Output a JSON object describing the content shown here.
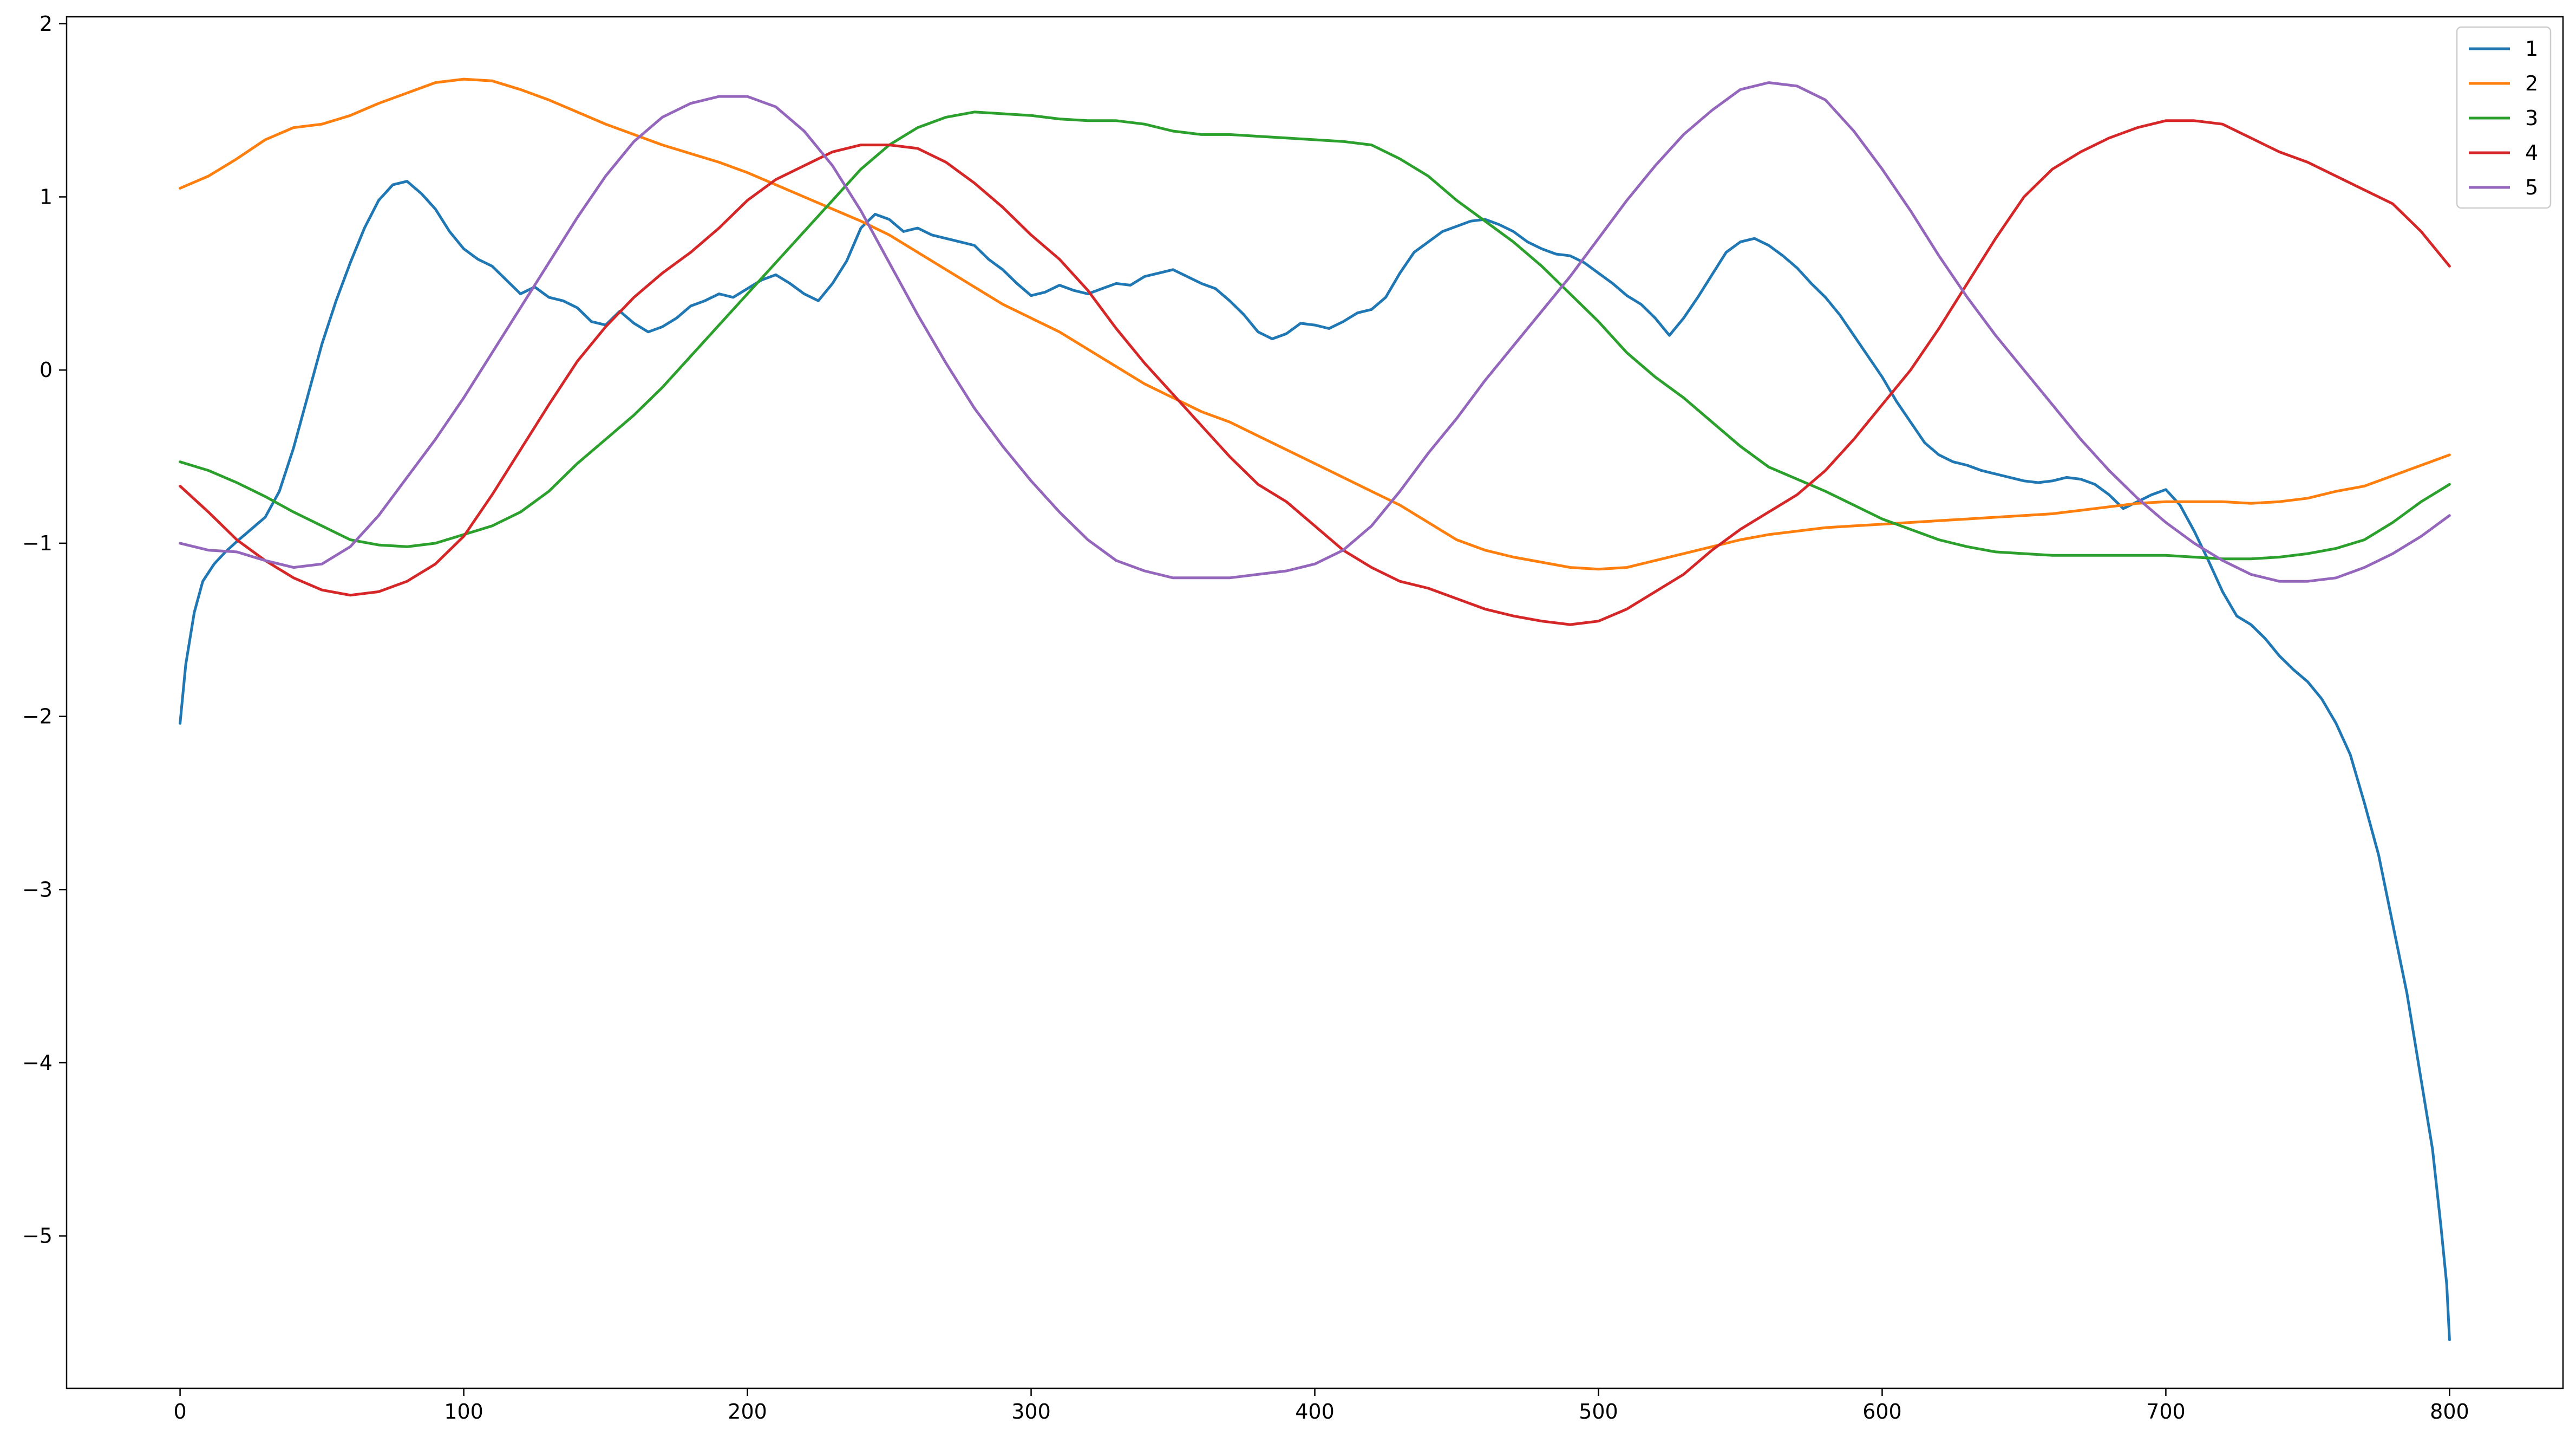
{
  "chart_data": {
    "type": "line",
    "title": "",
    "xlabel": "",
    "ylabel": "",
    "xlim": [
      -40,
      840
    ],
    "ylim": [
      -5.88,
      2.04
    ],
    "x_ticks": [
      0,
      100,
      200,
      300,
      400,
      500,
      600,
      700,
      800
    ],
    "x_tick_labels": [
      "0",
      "100",
      "200",
      "300",
      "400",
      "500",
      "600",
      "700",
      "800"
    ],
    "y_ticks": [
      -5,
      -4,
      -3,
      -2,
      -1,
      0,
      1,
      2
    ],
    "y_tick_labels": [
      "−5",
      "−4",
      "−3",
      "−2",
      "−1",
      "0",
      "1",
      "2"
    ],
    "grid": false,
    "legend_position": "top-right",
    "series": [
      {
        "name": "1",
        "color": "#1f77b4",
        "x": [
          0,
          2,
          5,
          8,
          12,
          16,
          20,
          25,
          30,
          35,
          40,
          45,
          50,
          55,
          60,
          65,
          70,
          75,
          80,
          85,
          90,
          95,
          100,
          105,
          110,
          115,
          120,
          125,
          130,
          135,
          140,
          145,
          150,
          155,
          160,
          165,
          170,
          175,
          180,
          185,
          190,
          195,
          200,
          205,
          210,
          215,
          220,
          225,
          230,
          235,
          240,
          245,
          250,
          255,
          260,
          265,
          270,
          275,
          280,
          285,
          290,
          295,
          300,
          305,
          310,
          315,
          320,
          325,
          330,
          335,
          340,
          345,
          350,
          355,
          360,
          365,
          370,
          375,
          380,
          385,
          390,
          395,
          400,
          405,
          410,
          415,
          420,
          425,
          430,
          435,
          440,
          445,
          450,
          455,
          460,
          465,
          470,
          475,
          480,
          485,
          490,
          495,
          500,
          505,
          510,
          515,
          520,
          525,
          530,
          535,
          540,
          545,
          550,
          555,
          560,
          565,
          570,
          575,
          580,
          585,
          590,
          595,
          600,
          605,
          610,
          615,
          620,
          625,
          630,
          635,
          640,
          645,
          650,
          655,
          660,
          665,
          670,
          675,
          680,
          685,
          690,
          695,
          700,
          705,
          710,
          715,
          720,
          725,
          730,
          735,
          740,
          745,
          750,
          755,
          760,
          765,
          770,
          775,
          780,
          785,
          790,
          794,
          797,
          799,
          800
        ],
        "y": [
          -2.04,
          -1.7,
          -1.4,
          -1.22,
          -1.12,
          -1.05,
          -0.99,
          -0.92,
          -0.85,
          -0.7,
          -0.45,
          -0.15,
          0.15,
          0.4,
          0.62,
          0.82,
          0.98,
          1.07,
          1.09,
          1.02,
          0.93,
          0.8,
          0.7,
          0.64,
          0.6,
          0.52,
          0.44,
          0.48,
          0.42,
          0.4,
          0.36,
          0.28,
          0.26,
          0.34,
          0.27,
          0.22,
          0.25,
          0.3,
          0.37,
          0.4,
          0.44,
          0.42,
          0.47,
          0.52,
          0.55,
          0.5,
          0.44,
          0.4,
          0.5,
          0.63,
          0.82,
          0.9,
          0.87,
          0.8,
          0.82,
          0.78,
          0.76,
          0.74,
          0.72,
          0.64,
          0.58,
          0.5,
          0.43,
          0.45,
          0.49,
          0.46,
          0.44,
          0.47,
          0.5,
          0.49,
          0.54,
          0.56,
          0.58,
          0.54,
          0.5,
          0.47,
          0.4,
          0.32,
          0.22,
          0.18,
          0.21,
          0.27,
          0.26,
          0.24,
          0.28,
          0.33,
          0.35,
          0.42,
          0.56,
          0.68,
          0.74,
          0.8,
          0.83,
          0.86,
          0.87,
          0.84,
          0.8,
          0.74,
          0.7,
          0.67,
          0.66,
          0.62,
          0.56,
          0.5,
          0.43,
          0.38,
          0.3,
          0.2,
          0.3,
          0.42,
          0.55,
          0.68,
          0.74,
          0.76,
          0.72,
          0.66,
          0.59,
          0.5,
          0.42,
          0.32,
          0.2,
          0.08,
          -0.04,
          -0.18,
          -0.3,
          -0.42,
          -0.49,
          -0.53,
          -0.55,
          -0.58,
          -0.6,
          -0.62,
          -0.64,
          -0.65,
          -0.64,
          -0.62,
          -0.63,
          -0.66,
          -0.72,
          -0.8,
          -0.76,
          -0.72,
          -0.69,
          -0.78,
          -0.93,
          -1.1,
          -1.28,
          -1.42,
          -1.47,
          -1.55,
          -1.65,
          -1.73,
          -1.8,
          -1.9,
          -2.04,
          -2.22,
          -2.5,
          -2.8,
          -3.2,
          -3.6,
          -4.1,
          -4.5,
          -4.95,
          -5.28,
          -5.6
        ]
      },
      {
        "name": "2",
        "color": "#ff7f0e",
        "x": [
          0,
          10,
          20,
          30,
          40,
          50,
          60,
          70,
          80,
          90,
          100,
          110,
          120,
          130,
          140,
          150,
          160,
          170,
          180,
          190,
          200,
          210,
          220,
          230,
          240,
          250,
          260,
          270,
          280,
          290,
          300,
          310,
          320,
          330,
          340,
          350,
          360,
          370,
          380,
          390,
          400,
          410,
          420,
          430,
          440,
          450,
          460,
          470,
          480,
          490,
          500,
          510,
          520,
          530,
          540,
          550,
          560,
          570,
          580,
          590,
          600,
          610,
          620,
          630,
          640,
          650,
          660,
          670,
          680,
          690,
          700,
          710,
          720,
          730,
          740,
          750,
          760,
          770,
          780,
          790,
          800
        ],
        "y": [
          1.05,
          1.12,
          1.22,
          1.33,
          1.4,
          1.42,
          1.47,
          1.54,
          1.6,
          1.66,
          1.68,
          1.67,
          1.62,
          1.56,
          1.49,
          1.42,
          1.36,
          1.3,
          1.25,
          1.2,
          1.14,
          1.07,
          1.0,
          0.93,
          0.86,
          0.78,
          0.68,
          0.58,
          0.48,
          0.38,
          0.3,
          0.22,
          0.12,
          0.02,
          -0.08,
          -0.16,
          -0.24,
          -0.3,
          -0.38,
          -0.46,
          -0.54,
          -0.62,
          -0.7,
          -0.78,
          -0.88,
          -0.98,
          -1.04,
          -1.08,
          -1.11,
          -1.14,
          -1.15,
          -1.14,
          -1.1,
          -1.06,
          -1.02,
          -0.98,
          -0.95,
          -0.93,
          -0.91,
          -0.9,
          -0.89,
          -0.88,
          -0.87,
          -0.86,
          -0.85,
          -0.84,
          -0.83,
          -0.81,
          -0.79,
          -0.77,
          -0.76,
          -0.76,
          -0.76,
          -0.77,
          -0.76,
          -0.74,
          -0.7,
          -0.67,
          -0.61,
          -0.55,
          -0.49
        ]
      },
      {
        "name": "3",
        "color": "#2ca02c",
        "x": [
          0,
          10,
          20,
          30,
          40,
          50,
          60,
          70,
          80,
          90,
          100,
          110,
          120,
          130,
          140,
          150,
          160,
          170,
          180,
          190,
          200,
          210,
          220,
          230,
          240,
          250,
          260,
          270,
          280,
          290,
          300,
          310,
          320,
          330,
          340,
          350,
          360,
          370,
          380,
          390,
          400,
          410,
          420,
          430,
          440,
          450,
          460,
          470,
          480,
          490,
          500,
          510,
          520,
          530,
          540,
          550,
          560,
          570,
          580,
          590,
          600,
          610,
          620,
          630,
          640,
          650,
          660,
          670,
          680,
          690,
          700,
          710,
          720,
          730,
          740,
          750,
          760,
          770,
          780,
          790,
          800
        ],
        "y": [
          -0.53,
          -0.58,
          -0.65,
          -0.73,
          -0.82,
          -0.9,
          -0.98,
          -1.01,
          -1.02,
          -1.0,
          -0.95,
          -0.9,
          -0.82,
          -0.7,
          -0.54,
          -0.4,
          -0.26,
          -0.1,
          0.08,
          0.26,
          0.44,
          0.62,
          0.8,
          0.98,
          1.16,
          1.3,
          1.4,
          1.46,
          1.49,
          1.48,
          1.47,
          1.45,
          1.44,
          1.44,
          1.42,
          1.38,
          1.36,
          1.36,
          1.35,
          1.34,
          1.33,
          1.32,
          1.3,
          1.22,
          1.12,
          0.98,
          0.86,
          0.74,
          0.6,
          0.44,
          0.28,
          0.1,
          -0.04,
          -0.16,
          -0.3,
          -0.44,
          -0.56,
          -0.63,
          -0.7,
          -0.78,
          -0.86,
          -0.92,
          -0.98,
          -1.02,
          -1.05,
          -1.06,
          -1.07,
          -1.07,
          -1.07,
          -1.07,
          -1.07,
          -1.08,
          -1.09,
          -1.09,
          -1.08,
          -1.06,
          -1.03,
          -0.98,
          -0.88,
          -0.76,
          -0.66
        ]
      },
      {
        "name": "4",
        "color": "#d62728",
        "x": [
          0,
          10,
          20,
          30,
          40,
          50,
          60,
          70,
          80,
          90,
          100,
          110,
          120,
          130,
          140,
          150,
          160,
          170,
          180,
          190,
          200,
          210,
          220,
          230,
          240,
          250,
          260,
          270,
          280,
          290,
          300,
          310,
          320,
          330,
          340,
          350,
          360,
          370,
          380,
          390,
          400,
          410,
          420,
          430,
          440,
          450,
          460,
          470,
          480,
          490,
          500,
          510,
          520,
          530,
          540,
          550,
          560,
          570,
          580,
          590,
          600,
          610,
          620,
          630,
          640,
          650,
          660,
          670,
          680,
          690,
          700,
          710,
          720,
          730,
          740,
          750,
          760,
          770,
          780,
          790,
          800
        ],
        "y": [
          -0.67,
          -0.82,
          -0.98,
          -1.1,
          -1.2,
          -1.27,
          -1.3,
          -1.28,
          -1.22,
          -1.12,
          -0.96,
          -0.72,
          -0.46,
          -0.2,
          0.05,
          0.25,
          0.42,
          0.56,
          0.68,
          0.82,
          0.98,
          1.1,
          1.18,
          1.26,
          1.3,
          1.3,
          1.28,
          1.2,
          1.08,
          0.94,
          0.78,
          0.64,
          0.46,
          0.24,
          0.04,
          -0.14,
          -0.32,
          -0.5,
          -0.66,
          -0.76,
          -0.9,
          -1.04,
          -1.14,
          -1.22,
          -1.26,
          -1.32,
          -1.38,
          -1.42,
          -1.45,
          -1.47,
          -1.45,
          -1.38,
          -1.28,
          -1.18,
          -1.04,
          -0.92,
          -0.82,
          -0.72,
          -0.58,
          -0.4,
          -0.2,
          0.0,
          0.24,
          0.5,
          0.76,
          1.0,
          1.16,
          1.26,
          1.34,
          1.4,
          1.44,
          1.44,
          1.42,
          1.34,
          1.26,
          1.2,
          1.12,
          1.04,
          0.96,
          0.8,
          0.6
        ]
      },
      {
        "name": "5",
        "color": "#9467bd",
        "x": [
          0,
          10,
          20,
          30,
          40,
          50,
          60,
          70,
          80,
          90,
          100,
          110,
          120,
          130,
          140,
          150,
          160,
          170,
          180,
          190,
          200,
          210,
          220,
          230,
          240,
          250,
          260,
          270,
          280,
          290,
          300,
          310,
          320,
          330,
          340,
          350,
          360,
          370,
          380,
          390,
          400,
          410,
          420,
          430,
          440,
          450,
          460,
          470,
          480,
          490,
          500,
          510,
          520,
          530,
          540,
          550,
          560,
          570,
          580,
          590,
          600,
          610,
          620,
          630,
          640,
          650,
          660,
          670,
          680,
          690,
          700,
          710,
          720,
          730,
          740,
          750,
          760,
          770,
          780,
          790,
          800
        ],
        "y": [
          -1.0,
          -1.04,
          -1.05,
          -1.1,
          -1.14,
          -1.12,
          -1.02,
          -0.84,
          -0.62,
          -0.4,
          -0.16,
          0.1,
          0.36,
          0.62,
          0.88,
          1.12,
          1.32,
          1.46,
          1.54,
          1.58,
          1.58,
          1.52,
          1.38,
          1.18,
          0.92,
          0.62,
          0.32,
          0.04,
          -0.22,
          -0.44,
          -0.64,
          -0.82,
          -0.98,
          -1.1,
          -1.16,
          -1.2,
          -1.2,
          -1.2,
          -1.18,
          -1.16,
          -1.12,
          -1.04,
          -0.9,
          -0.7,
          -0.48,
          -0.28,
          -0.06,
          0.14,
          0.34,
          0.54,
          0.76,
          0.98,
          1.18,
          1.36,
          1.5,
          1.62,
          1.66,
          1.64,
          1.56,
          1.38,
          1.16,
          0.92,
          0.66,
          0.42,
          0.2,
          0.0,
          -0.2,
          -0.4,
          -0.58,
          -0.74,
          -0.88,
          -1.0,
          -1.1,
          -1.18,
          -1.22,
          -1.22,
          -1.2,
          -1.14,
          -1.06,
          -0.96,
          -0.84
        ]
      }
    ]
  }
}
